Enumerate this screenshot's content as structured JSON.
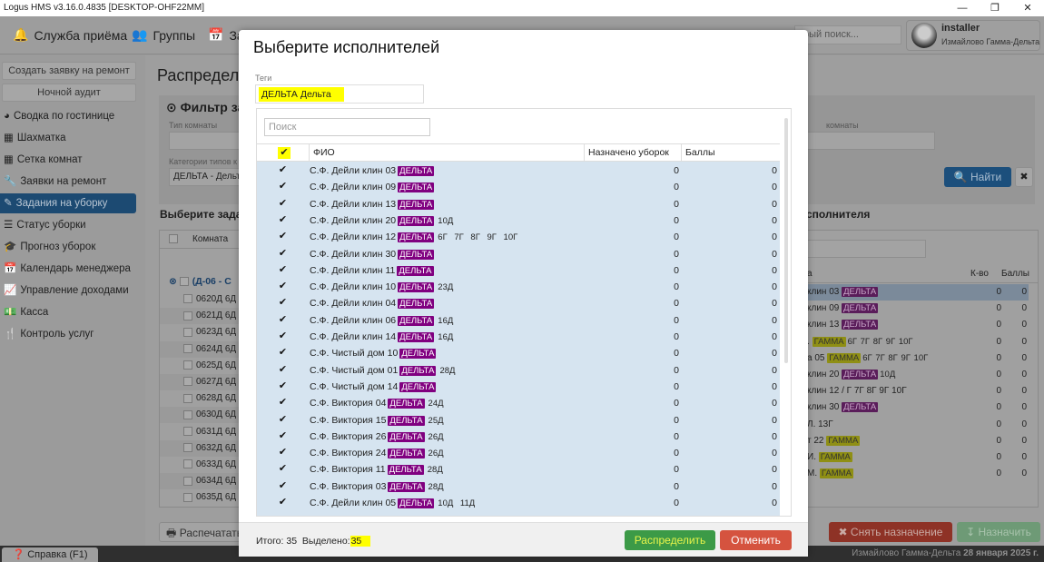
{
  "window": {
    "title": "Logus HMS v3.16.0.4835 [DESKTOP-OHF22MM]",
    "minimize": "—",
    "restore": "❐",
    "close": "✕"
  },
  "toolbar": {
    "items": [
      {
        "label": "Служба приёма",
        "icon": "bell-icon"
      },
      {
        "label": "Группы",
        "icon": "users-icon"
      },
      {
        "label": "За",
        "icon": "calendar-check-icon"
      }
    ],
    "quick_search_placeholder": "трый поиск...",
    "user": {
      "name": "installer",
      "hotel": "Измайлово Гамма-Дельта"
    }
  },
  "sidebar": {
    "buttons": [
      "Создать заявку на ремонт",
      "Ночной аудит"
    ],
    "items": [
      {
        "label": "Сводка по гостинице",
        "icon": "pie-chart-icon"
      },
      {
        "label": "Шахматка",
        "icon": "grid-icon"
      },
      {
        "label": "Сетка комнат",
        "icon": "grid-icon"
      },
      {
        "label": "Заявки на ремонт",
        "icon": "wrench-icon"
      },
      {
        "label": "Задания на уборку",
        "icon": "edit-icon",
        "active": true
      },
      {
        "label": "Статус уборки",
        "icon": "list-icon"
      },
      {
        "label": "Прогноз уборок",
        "icon": "graduation-cap-icon"
      },
      {
        "label": "Календарь менеджера",
        "icon": "calendar-icon"
      },
      {
        "label": "Управление доходами",
        "icon": "line-chart-icon"
      },
      {
        "label": "Касса",
        "icon": "money-icon"
      },
      {
        "label": "Контроль услуг",
        "icon": "cutlery-icon"
      }
    ]
  },
  "main": {
    "title": "Распредел",
    "filter": {
      "title": "Фильтр за",
      "room_type_label": "Тип комнаты",
      "category_label": "Категории типов к",
      "category_value": "ДЕЛЬТА - Дельт",
      "right_label": "комнаты",
      "find": "Найти",
      "clear": "✖"
    },
    "left_title": "Выберите зада",
    "left_header": "Комната",
    "group": "(Д-06 - С",
    "rooms": [
      "0620Д",
      "0621Д",
      "0623Д",
      "0624Д",
      "0625Д",
      "0627Д",
      "0628Д",
      "0630Д",
      "0631Д",
      "0632Д",
      "0633Д",
      "0634Д",
      "0635Д"
    ],
    "room_suffix": "6Д",
    "right_title": "сполнителя",
    "right_headers": {
      "name": "а",
      "count": "К-во",
      "points": "Баллы"
    },
    "right_rows": [
      {
        "name": "клин 03",
        "tag": "ДЕЛЬТА",
        "tagtype": "d",
        "ext": "",
        "k": "0",
        "b": "0",
        "selected": true
      },
      {
        "name": "клин 09",
        "tag": "ДЕЛЬТА",
        "tagtype": "d",
        "ext": "",
        "k": "0",
        "b": "0"
      },
      {
        "name": "клин 13",
        "tag": "ДЕЛЬТА",
        "tagtype": "d",
        "ext": "",
        "k": "0",
        "b": "0"
      },
      {
        "name": ".",
        "tag": "ГАММА",
        "tagtype": "g",
        "ext": "6Г 7Г 8Г 9Г 10Г",
        "k": "0",
        "b": "0"
      },
      {
        "name": "а 05",
        "tag": "ГАММА",
        "tagtype": "g",
        "ext": "6Г 7Г 8Г 9Г 10Г",
        "k": "0",
        "b": "0"
      },
      {
        "name": "клин 20",
        "tag": "ДЕЛЬТА",
        "tagtype": "d",
        "ext": "10Д",
        "k": "0",
        "b": "0"
      },
      {
        "name": "клин 12 / Г 7Г 8Г 9Г 10Г",
        "tag": "",
        "tagtype": "",
        "ext": "",
        "k": "0",
        "b": "0"
      },
      {
        "name": "клин 30",
        "tag": "ДЕЛЬТА",
        "tagtype": "d",
        "ext": "",
        "k": "0",
        "b": "0"
      },
      {
        "name": "Л. 13Г",
        "tag": "",
        "tagtype": "",
        "ext": "",
        "k": "0",
        "b": "0"
      },
      {
        "name": "т 22",
        "tag": "ГАММА",
        "tagtype": "g",
        "ext": "",
        "k": "0",
        "b": "0"
      },
      {
        "name": "И.",
        "tag": "ГАММА",
        "tagtype": "g",
        "ext": "",
        "k": "0",
        "b": "0"
      },
      {
        "name": "М.",
        "tag": "ГАММА",
        "tagtype": "g",
        "ext": "",
        "k": "0",
        "b": "0"
      }
    ],
    "print": "Распечатать",
    "unassign": "✖ Снять назначение",
    "assign": "↧ Назначить"
  },
  "status": {
    "help": "❓ Справка (F1)",
    "hotel": "Измайлово Гамма-Дельта",
    "date": "28 января 2025 г."
  },
  "modal": {
    "title": "Выберите исполнителей",
    "tags_label": "Теги",
    "tag_value": "ДЕЛЬТА Дельта",
    "search_placeholder": "Поиск",
    "headers": {
      "fio": "ФИО",
      "assigned": "Назначено уборок",
      "points": "Баллы"
    },
    "rows": [
      {
        "name": "С.Ф. Дейли клин 03",
        "tag": "ДЕЛЬТА",
        "ext": "",
        "assigned": "0",
        "points": "0",
        "checked": true
      },
      {
        "name": "С.Ф. Дейли клин 09",
        "tag": "ДЕЛЬТА",
        "ext": "",
        "assigned": "0",
        "points": "0",
        "checked": true
      },
      {
        "name": "С.Ф. Дейли клин 13",
        "tag": "ДЕЛЬТА",
        "ext": "",
        "assigned": "0",
        "points": "0",
        "checked": true
      },
      {
        "name": "С.Ф. Дейли клин 20",
        "tag": "ДЕЛЬТА",
        "ext": "10Д",
        "assigned": "0",
        "points": "0",
        "checked": true
      },
      {
        "name": "С.Ф. Дейли клин 12",
        "tag": "ДЕЛЬТА",
        "ext": "6Г 7Г 8Г 9Г 10Г",
        "assigned": "0",
        "points": "0",
        "checked": true
      },
      {
        "name": "С.Ф. Дейли клин 30",
        "tag": "ДЕЛЬТА",
        "ext": "",
        "assigned": "0",
        "points": "0",
        "checked": true
      },
      {
        "name": "С.Ф. Дейли клин 11",
        "tag": "ДЕЛЬТА",
        "ext": "",
        "assigned": "0",
        "points": "0",
        "checked": true
      },
      {
        "name": "С.Ф. Дейли клин 10",
        "tag": "ДЕЛЬТА",
        "ext": "23Д",
        "assigned": "0",
        "points": "0",
        "checked": true
      },
      {
        "name": "С.Ф. Дейли клин 04",
        "tag": "ДЕЛЬТА",
        "ext": "",
        "assigned": "0",
        "points": "0",
        "checked": true
      },
      {
        "name": "С.Ф. Дейли клин 06",
        "tag": "ДЕЛЬТА",
        "ext": "16Д",
        "assigned": "0",
        "points": "0",
        "checked": true
      },
      {
        "name": "С.Ф. Дейли клин 14",
        "tag": "ДЕЛЬТА",
        "ext": "16Д",
        "assigned": "0",
        "points": "0",
        "checked": true
      },
      {
        "name": "С.Ф. Чистый дом 10",
        "tag": "ДЕЛЬТА",
        "ext": "",
        "assigned": "0",
        "points": "0",
        "checked": true
      },
      {
        "name": "С.Ф. Чистый дом 01",
        "tag": "ДЕЛЬТА",
        "ext": "28Д",
        "assigned": "0",
        "points": "0",
        "checked": true
      },
      {
        "name": "С.Ф. Чистый дом 14",
        "tag": "ДЕЛЬТА",
        "ext": "",
        "assigned": "0",
        "points": "0",
        "checked": true
      },
      {
        "name": "С.Ф. Виктория 04",
        "tag": "ДЕЛЬТА",
        "ext": "24Д",
        "assigned": "0",
        "points": "0",
        "checked": true
      },
      {
        "name": "С.Ф. Виктория 15",
        "tag": "ДЕЛЬТА",
        "ext": "25Д",
        "assigned": "0",
        "points": "0",
        "checked": true
      },
      {
        "name": "С.Ф. Виктория 26",
        "tag": "ДЕЛЬТА",
        "ext": "26Д",
        "assigned": "0",
        "points": "0",
        "checked": true
      },
      {
        "name": "С.Ф. Виктория 24",
        "tag": "ДЕЛЬТА",
        "ext": "26Д",
        "assigned": "0",
        "points": "0",
        "checked": true
      },
      {
        "name": "С.Ф. Виктория 11",
        "tag": "ДЕЛЬТА",
        "ext": "28Д",
        "assigned": "0",
        "points": "0",
        "checked": true
      },
      {
        "name": "С.Ф. Виктория 03",
        "tag": "ДЕЛЬТА",
        "ext": "28Д",
        "assigned": "0",
        "points": "0",
        "checked": true
      },
      {
        "name": "С.Ф. Дейли клин 05",
        "tag": "ДЕЛЬТА",
        "ext": "10Д 11Д",
        "assigned": "0",
        "points": "0",
        "checked": true
      }
    ],
    "total_label": "Итого:",
    "total": "35",
    "selected_label": "Выделено:",
    "selected": "35",
    "distribute": "Распределить",
    "cancel": "Отменить"
  },
  "colors": {
    "accent": "#1f5a8e",
    "tag_delta": "#800080",
    "tag_gamma": "#e6e600",
    "highlight": "#ffff00",
    "distribute": "#3c9a47",
    "cancel": "#d5533f",
    "row_bg": "#d6e4f0"
  }
}
